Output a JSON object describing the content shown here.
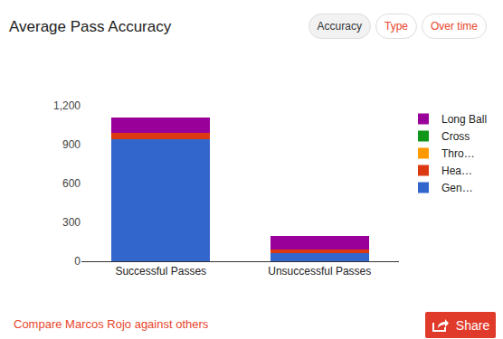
{
  "chart_data": {
    "type": "bar",
    "title": "Average Pass Accuracy",
    "categories": [
      "Successful Passes",
      "Unsuccessful Passes"
    ],
    "series": [
      {
        "name": "Gen…",
        "color": "#3366cc",
        "values": [
          940,
          60
        ]
      },
      {
        "name": "Hea…",
        "color": "#dc3912",
        "values": [
          50,
          30
        ]
      },
      {
        "name": "Thro…",
        "color": "#ff9900",
        "values": [
          0,
          0
        ]
      },
      {
        "name": "Cross",
        "color": "#109618",
        "values": [
          0,
          0
        ]
      },
      {
        "name": "Long Ball",
        "color": "#990099",
        "values": [
          120,
          105
        ]
      }
    ],
    "ylim": [
      0,
      1200
    ],
    "yticks": [
      0,
      300,
      600,
      900,
      {
        "value": 1200,
        "label": "1,200"
      }
    ],
    "stacked": true,
    "grid": false,
    "legend": "right"
  },
  "tabs": [
    "Accuracy",
    "Type",
    "Over time"
  ],
  "compare_link": "Compare Marcos Rojo against others",
  "share": "Share"
}
